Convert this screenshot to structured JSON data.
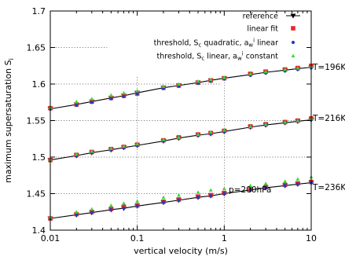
{
  "chart_data": {
    "type": "scatter",
    "xlabel": "vertical velocity (m/s)",
    "ylabel": "maximum supersaturation S",
    "ylabel_sub": "i",
    "xscale": "log",
    "xlim": [
      0.01,
      10
    ],
    "ylim": [
      1.4,
      1.7
    ],
    "xticks": [
      0.01,
      0.1,
      1,
      10
    ],
    "xtick_labels": [
      "0.01",
      "0.1",
      "1",
      "10"
    ],
    "yticks": [
      1.4,
      1.45,
      1.5,
      1.55,
      1.6,
      1.65,
      1.7
    ],
    "ytick_labels": [
      "1.4",
      "1.45",
      "1.5",
      "1.55",
      "1.6",
      "1.65",
      "1.7"
    ],
    "grid": "partial dotted",
    "legend_position": "top-right",
    "annotations": [
      {
        "text": "p=200hPa"
      },
      {
        "text": "T=196K"
      },
      {
        "text": "T=216K"
      },
      {
        "text": "T=236K"
      }
    ],
    "x": [
      0.01,
      0.02,
      0.03,
      0.05,
      0.07,
      0.1,
      0.2,
      0.3,
      0.5,
      0.7,
      1,
      2,
      3,
      5,
      7,
      10
    ],
    "series": [
      {
        "name": "reference",
        "label_main": "reference",
        "label_sub": "",
        "label_tail": "",
        "color": "#000000",
        "marker": "triangle-down",
        "line": true,
        "groups": [
          [
            1.566,
            1.572,
            1.576,
            1.581,
            1.584,
            1.588,
            1.595,
            1.598,
            1.602,
            1.605,
            1.608,
            1.613,
            1.616,
            1.619,
            1.621,
            1.623
          ],
          [
            1.496,
            1.502,
            1.506,
            1.51,
            1.513,
            1.516,
            1.522,
            1.526,
            1.53,
            1.532,
            1.535,
            1.541,
            1.544,
            1.547,
            1.549,
            1.551
          ],
          [
            1.416,
            1.421,
            1.424,
            1.428,
            1.43,
            1.433,
            1.438,
            1.441,
            1.445,
            1.447,
            1.45,
            1.455,
            1.458,
            1.461,
            1.463,
            1.465
          ]
        ]
      },
      {
        "name": "linear fit",
        "label_main": "linear fit",
        "label_sub": "",
        "label_tail": "",
        "color": "#e8282b",
        "marker": "square",
        "line": false,
        "groups": [
          [
            1.567,
            1.572,
            1.576,
            1.581,
            1.584,
            1.587,
            1.595,
            1.598,
            1.602,
            1.605,
            1.608,
            1.614,
            1.617,
            1.62,
            1.622,
            1.625
          ],
          [
            1.496,
            1.503,
            1.507,
            1.511,
            1.514,
            1.517,
            1.523,
            1.527,
            1.531,
            1.533,
            1.536,
            1.542,
            1.545,
            1.548,
            1.55,
            1.553
          ],
          [
            1.416,
            1.422,
            1.425,
            1.429,
            1.432,
            1.434,
            1.439,
            1.442,
            1.446,
            1.448,
            1.451,
            1.456,
            1.459,
            1.462,
            1.464,
            1.466
          ]
        ]
      },
      {
        "name": "threshold, Sc quadratic, aw i linear",
        "label_main": "threshold, S",
        "label_sub": "c",
        "label_tail": " quadratic, a",
        "label_sub2": "w",
        "label_sup2": "i",
        "label_end": " linear",
        "color": "#1f3fbf",
        "marker": "circle",
        "line": false,
        "groups": [
          [
            1.566,
            1.571,
            1.575,
            1.58,
            1.583,
            1.587,
            1.594,
            1.597,
            1.601,
            1.604,
            1.607,
            1.612,
            1.615,
            1.618,
            1.62,
            1.622
          ],
          [
            1.496,
            1.502,
            1.506,
            1.51,
            1.513,
            1.516,
            1.522,
            1.526,
            1.53,
            1.532,
            1.535,
            1.541,
            1.544,
            1.547,
            1.549,
            1.551
          ],
          [
            1.416,
            1.421,
            1.424,
            1.428,
            1.43,
            1.433,
            1.438,
            1.441,
            1.445,
            1.447,
            1.45,
            1.455,
            1.458,
            1.461,
            1.463,
            1.465
          ]
        ]
      },
      {
        "name": "threshold, Sc linear, aw i constant",
        "label_main": "threshold, S",
        "label_sub": "c",
        "label_tail": " linear, a",
        "label_sub2": "w",
        "label_sup2": "i",
        "label_end": " constant",
        "color": "#33dd33",
        "marker": "triangle-up",
        "line": false,
        "groups": [
          [
            1.568,
            1.576,
            1.58,
            1.585,
            1.588,
            1.591,
            1.597,
            1.6,
            1.604,
            1.606,
            1.609,
            1.614,
            1.617,
            1.62,
            1.622,
            1.624
          ],
          [
            1.497,
            1.504,
            1.508,
            1.512,
            1.515,
            1.518,
            1.524,
            1.527,
            1.531,
            1.534,
            1.537,
            1.542,
            1.545,
            1.548,
            1.55,
            1.553
          ],
          [
            1.418,
            1.425,
            1.429,
            1.434,
            1.437,
            1.44,
            1.445,
            1.448,
            1.452,
            1.455,
            1.457,
            1.461,
            1.464,
            1.467,
            1.47,
            1.473
          ]
        ]
      }
    ]
  }
}
